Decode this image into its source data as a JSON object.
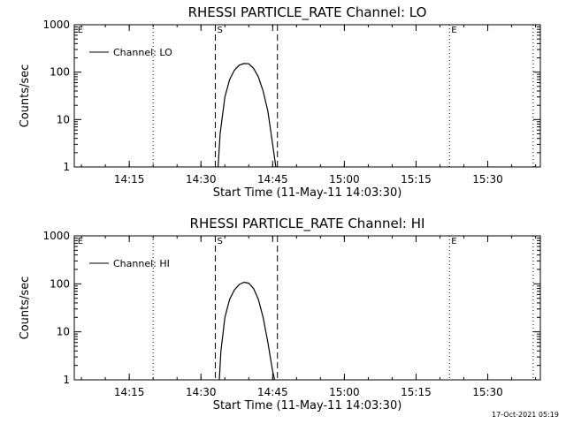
{
  "chart_data": [
    {
      "type": "line",
      "title": "RHESSI PARTICLE_RATE Channel: LO",
      "xlabel": "Start Time (11-May-11 14:03:30)",
      "ylabel": "Counts/sec",
      "yscale": "log",
      "ylim": [
        1,
        1000
      ],
      "xlim": [
        "14:03:30",
        "15:41:00"
      ],
      "x_ticks": [
        "14:15",
        "14:30",
        "14:45",
        "15:00",
        "15:15",
        "15:30"
      ],
      "y_ticks": [
        "1",
        "10",
        "100",
        "1000"
      ],
      "legend": {
        "position": "top-left",
        "label": "Channel: LO"
      },
      "markers": [
        {
          "label": "E",
          "time": "14:03:50",
          "style": "none"
        },
        {
          "label": "",
          "time": "14:20:00",
          "style": "dotted"
        },
        {
          "label": "S",
          "time": "14:33:00",
          "style": "dashed"
        },
        {
          "label": "",
          "time": "14:46:00",
          "style": "dashed"
        },
        {
          "label": "E",
          "time": "15:22:00",
          "style": "dotted"
        },
        {
          "label": "",
          "time": "15:39:30",
          "style": "dotted"
        }
      ],
      "series": [
        {
          "name": "Channel: LO",
          "x": [
            "14:33:35",
            "14:34:00",
            "14:35:00",
            "14:36:00",
            "14:37:00",
            "14:38:00",
            "14:39:00",
            "14:40:00",
            "14:41:00",
            "14:42:00",
            "14:43:00",
            "14:44:00",
            "14:45:00",
            "14:45:40"
          ],
          "y": [
            1,
            5,
            30,
            70,
            110,
            140,
            152,
            150,
            120,
            80,
            40,
            15,
            3,
            1
          ]
        }
      ]
    },
    {
      "type": "line",
      "title": "RHESSI PARTICLE_RATE Channel: HI",
      "xlabel": "Start Time (11-May-11 14:03:30)",
      "ylabel": "Counts/sec",
      "yscale": "log",
      "ylim": [
        1,
        1000
      ],
      "xlim": [
        "14:03:30",
        "15:41:00"
      ],
      "x_ticks": [
        "14:15",
        "14:30",
        "14:45",
        "15:00",
        "15:15",
        "15:30"
      ],
      "y_ticks": [
        "1",
        "10",
        "100",
        "1000"
      ],
      "legend": {
        "position": "top-left",
        "label": "Channel: HI"
      },
      "markers": [
        {
          "label": "E",
          "time": "14:03:50",
          "style": "none"
        },
        {
          "label": "",
          "time": "14:20:00",
          "style": "dotted"
        },
        {
          "label": "S",
          "time": "14:33:00",
          "style": "dashed"
        },
        {
          "label": "",
          "time": "14:46:00",
          "style": "dashed"
        },
        {
          "label": "E",
          "time": "15:22:00",
          "style": "dotted"
        },
        {
          "label": "",
          "time": "15:39:30",
          "style": "dotted"
        }
      ],
      "series": [
        {
          "name": "Channel: HI",
          "x": [
            "14:33:50",
            "14:34:10",
            "14:35:00",
            "14:36:00",
            "14:37:00",
            "14:38:00",
            "14:39:00",
            "14:40:00",
            "14:41:00",
            "14:42:00",
            "14:43:00",
            "14:44:00",
            "14:45:00",
            "14:45:25"
          ],
          "y": [
            1,
            4,
            20,
            48,
            75,
            97,
            108,
            103,
            80,
            48,
            20,
            6,
            1.5,
            1
          ]
        }
      ]
    }
  ],
  "footer": {
    "timestamp": "17-Oct-2021 05:19"
  }
}
